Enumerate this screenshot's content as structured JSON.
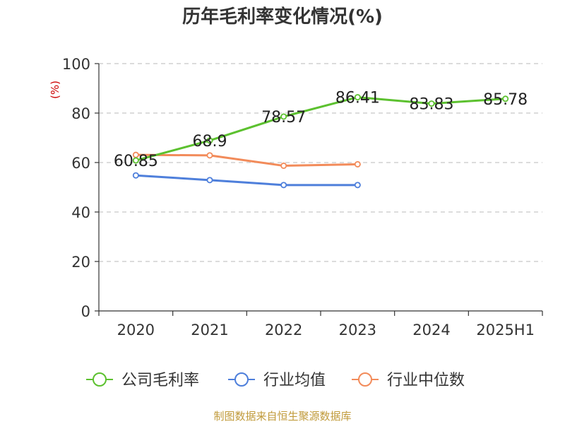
{
  "chart_data": {
    "type": "line",
    "title": "历年毛利率变化情况(%)",
    "ylabel": "(%)",
    "xlabel": "",
    "categories": [
      "2020",
      "2021",
      "2022",
      "2023",
      "2024",
      "2025H1"
    ],
    "ylim": [
      0,
      100
    ],
    "yticks": [
      0,
      20,
      40,
      60,
      80,
      100
    ],
    "grid": true,
    "legend_position": "bottom",
    "series": [
      {
        "name": "公司毛利率",
        "color": "#5cc12f",
        "values": [
          60.85,
          68.9,
          78.57,
          86.41,
          83.83,
          85.78
        ],
        "labels": [
          "60.85",
          "68.9",
          "78.57",
          "86.41",
          "83.83",
          "85.78"
        ]
      },
      {
        "name": "行业均值",
        "color": "#4e7fdb",
        "values": [
          54.8,
          52.9,
          50.9,
          50.9,
          null,
          null
        ]
      },
      {
        "name": "行业中位数",
        "color": "#f28b5a",
        "values": [
          63.1,
          62.9,
          58.7,
          59.3,
          null,
          null
        ]
      }
    ]
  },
  "footer": {
    "source": "制图数据来自恒生聚源数据库"
  }
}
